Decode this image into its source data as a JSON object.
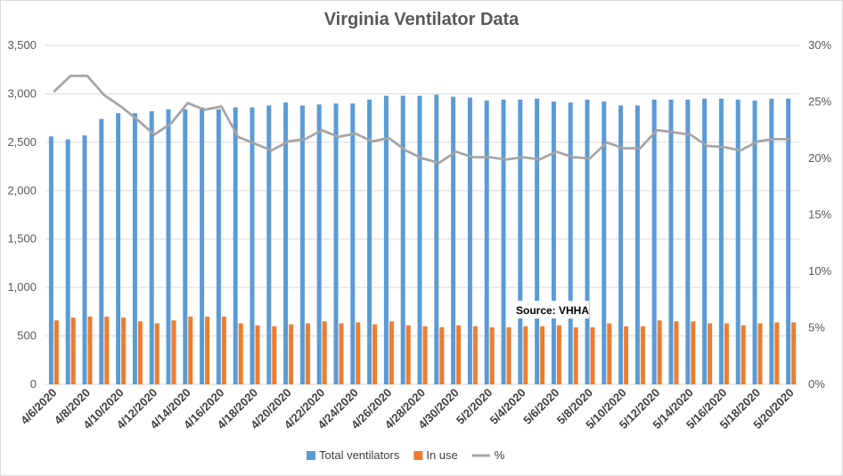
{
  "chart_data": {
    "type": "bar",
    "title": "Virginia Ventilator Data",
    "xlabel": "",
    "ylabel": "",
    "ylim": [
      0,
      3500
    ],
    "y_ticks": [
      "0",
      "500",
      "1,000",
      "1,500",
      "2,000",
      "2,500",
      "3,000",
      "3,500"
    ],
    "y2lim": [
      0,
      0.3
    ],
    "y2_ticks": [
      "0%",
      "5%",
      "10%",
      "15%",
      "20%",
      "25%",
      "30%"
    ],
    "grid": true,
    "legend_position": "bottom",
    "categories": [
      "4/6/2020",
      "4/7/2020",
      "4/8/2020",
      "4/9/2020",
      "4/10/2020",
      "4/11/2020",
      "4/12/2020",
      "4/13/2020",
      "4/14/2020",
      "4/15/2020",
      "4/16/2020",
      "4/17/2020",
      "4/18/2020",
      "4/19/2020",
      "4/20/2020",
      "4/21/2020",
      "4/22/2020",
      "4/23/2020",
      "4/24/2020",
      "4/25/2020",
      "4/26/2020",
      "4/27/2020",
      "4/28/2020",
      "4/29/2020",
      "4/30/2020",
      "5/1/2020",
      "5/2/2020",
      "5/3/2020",
      "5/4/2020",
      "5/5/2020",
      "5/6/2020",
      "5/7/2020",
      "5/8/2020",
      "5/9/2020",
      "5/10/2020",
      "5/11/2020",
      "5/12/2020",
      "5/13/2020",
      "5/14/2020",
      "5/15/2020",
      "5/16/2020",
      "5/17/2020",
      "5/18/2020",
      "5/19/2020",
      "5/20/2020"
    ],
    "x_tick_labels": [
      "4/6/2020",
      "4/8/2020",
      "4/10/2020",
      "4/12/2020",
      "4/14/2020",
      "4/16/2020",
      "4/18/2020",
      "4/20/2020",
      "4/22/2020",
      "4/24/2020",
      "4/26/2020",
      "4/28/2020",
      "4/30/2020",
      "5/2/2020",
      "5/4/2020",
      "5/6/2020",
      "5/8/2020",
      "5/10/2020",
      "5/12/2020",
      "5/14/2020",
      "5/16/2020",
      "5/18/2020",
      "5/20/2020"
    ],
    "series": [
      {
        "name": "Total ventilators",
        "type": "bar",
        "axis": "left",
        "color": "#5b9bd5",
        "values": [
          2560,
          2530,
          2570,
          2740,
          2800,
          2800,
          2820,
          2840,
          2840,
          2860,
          2840,
          2860,
          2860,
          2880,
          2910,
          2880,
          2890,
          2900,
          2900,
          2940,
          2980,
          2980,
          2980,
          2990,
          2970,
          2960,
          2930,
          2940,
          2940,
          2950,
          2920,
          2910,
          2940,
          2920,
          2880,
          2880,
          2940,
          2940,
          2940,
          2950,
          2950,
          2940,
          2930,
          2950,
          2950
        ]
      },
      {
        "name": "In use",
        "type": "bar",
        "axis": "left",
        "color": "#ed7d31",
        "values": [
          660,
          690,
          700,
          700,
          690,
          650,
          630,
          660,
          700,
          700,
          700,
          630,
          610,
          600,
          620,
          630,
          650,
          630,
          640,
          620,
          650,
          610,
          600,
          590,
          610,
          600,
          590,
          590,
          600,
          600,
          610,
          590,
          590,
          630,
          600,
          600,
          660,
          650,
          650,
          630,
          630,
          610,
          630,
          640,
          640
        ]
      },
      {
        "name": "%",
        "type": "line",
        "axis": "right",
        "color": "#a5a5a5",
        "values": [
          0.259,
          0.273,
          0.273,
          0.256,
          0.246,
          0.234,
          0.221,
          0.231,
          0.249,
          0.243,
          0.246,
          0.219,
          0.213,
          0.207,
          0.215,
          0.217,
          0.225,
          0.219,
          0.222,
          0.215,
          0.218,
          0.207,
          0.2,
          0.196,
          0.206,
          0.201,
          0.201,
          0.199,
          0.201,
          0.199,
          0.206,
          0.201,
          0.2,
          0.214,
          0.209,
          0.209,
          0.225,
          0.223,
          0.221,
          0.211,
          0.21,
          0.207,
          0.215,
          0.217,
          0.217
        ]
      }
    ],
    "annotations": [
      {
        "text": "Source: VHHA"
      }
    ]
  }
}
